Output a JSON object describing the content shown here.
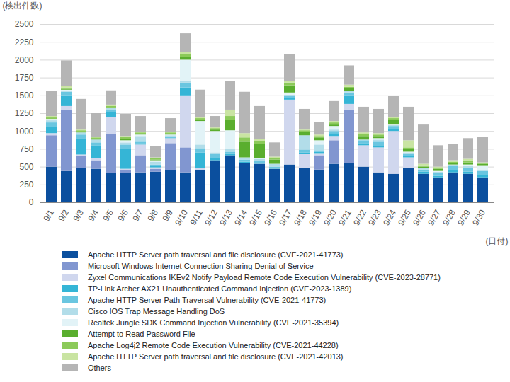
{
  "chart_data": {
    "type": "bar",
    "stacked": true,
    "grid": true,
    "legend": "bottom",
    "ylabel": "(検出件数)",
    "xlabel": "(日付)",
    "ylim": [
      0,
      2500
    ],
    "yticks": [
      0,
      250,
      500,
      750,
      1000,
      1250,
      1500,
      1750,
      2000,
      2250,
      2500
    ],
    "categories": [
      "9/1",
      "9/2",
      "9/3",
      "9/4",
      "9/5",
      "9/6",
      "9/7",
      "9/8",
      "9/9",
      "9/10",
      "9/11",
      "9/12",
      "9/13",
      "9/14",
      "9/15",
      "9/16",
      "9/17",
      "9/18",
      "9/19",
      "9/20",
      "9/21",
      "9/22",
      "9/23",
      "9/24",
      "9/25",
      "9/26",
      "9/27",
      "9/28",
      "9/29",
      "9/30"
    ],
    "series": [
      {
        "name": "Apache HTTP Server path traversal and file disclosure (CVE-2021-41773)",
        "color": "#0b4f9e",
        "values": [
          500,
          440,
          480,
          470,
          410,
          410,
          420,
          430,
          450,
          420,
          450,
          590,
          660,
          550,
          540,
          470,
          530,
          480,
          460,
          540,
          550,
          500,
          420,
          400,
          480,
          400,
          350,
          420,
          400,
          350
        ]
      },
      {
        "name": "Microsoft Windows Internet Connection Sharing Denial of Service",
        "color": "#8196d0",
        "values": [
          440,
          860,
          170,
          120,
          550,
          40,
          240,
          40,
          380,
          350,
          10,
          0,
          0,
          0,
          0,
          0,
          0,
          0,
          200,
          330,
          750,
          0,
          0,
          0,
          0,
          0,
          0,
          0,
          0,
          0
        ]
      },
      {
        "name": "Zyxel Communications IKEv2 Notify Payload Remote Code Execution Vulnerability (CVE-2023-28771)",
        "color": "#d0d7ee",
        "values": [
          30,
          50,
          20,
          30,
          240,
          20,
          150,
          20,
          70,
          730,
          20,
          0,
          0,
          0,
          0,
          0,
          910,
          200,
          30,
          60,
          80,
          300,
          350,
          600,
          150,
          0,
          0,
          0,
          0,
          0
        ]
      },
      {
        "name": "TP-Link Archer AX21 Unauthenticated Command Injection (CVE-2023-1389)",
        "color": "#35b5d6",
        "values": [
          90,
          150,
          230,
          180,
          60,
          280,
          20,
          20,
          10,
          110,
          220,
          30,
          30,
          20,
          0,
          0,
          20,
          20,
          20,
          40,
          120,
          30,
          20,
          30,
          20,
          30,
          20,
          30,
          30,
          30
        ]
      },
      {
        "name": "Apache HTTP Server Path Traversal Vulnerability (CVE-2021-41773)",
        "color": "#6ac6e0",
        "values": [
          60,
          50,
          50,
          40,
          40,
          60,
          20,
          20,
          10,
          70,
          60,
          60,
          20,
          30,
          40,
          30,
          30,
          40,
          20,
          30,
          40,
          40,
          60,
          40,
          30,
          30,
          40,
          60,
          60,
          60
        ]
      },
      {
        "name": "Cisco IOS Trap Message Handling DoS",
        "color": "#b2dde9",
        "values": [
          30,
          20,
          30,
          40,
          20,
          30,
          80,
          40,
          20,
          30,
          50,
          20,
          40,
          30,
          30,
          40,
          20,
          200,
          80,
          20,
          20,
          10,
          30,
          20,
          20,
          20,
          20,
          20,
          20,
          20
        ]
      },
      {
        "name": "Realtek Jungle SDK Command Injection Vulnerability (CVE-2021-35394)",
        "color": "#e2f3f7",
        "values": [
          20,
          10,
          0,
          0,
          0,
          30,
          20,
          20,
          10,
          290,
          330,
          300,
          260,
          0,
          10,
          0,
          30,
          0,
          60,
          50,
          0,
          0,
          20,
          10,
          10,
          0,
          10,
          0,
          20,
          60
        ]
      },
      {
        "name": "Attempt to Read Password File",
        "color": "#5aae2e",
        "values": [
          0,
          10,
          10,
          10,
          10,
          20,
          10,
          10,
          10,
          40,
          20,
          20,
          150,
          220,
          200,
          60,
          100,
          50,
          40,
          30,
          40,
          50,
          30,
          60,
          40,
          20,
          30,
          20,
          30,
          20
        ]
      },
      {
        "name": "Apache Log4j2 Remote Code Execution Vulnerability (CVE-2021-44228)",
        "color": "#8cca5a",
        "values": [
          20,
          20,
          20,
          20,
          20,
          30,
          20,
          20,
          20,
          40,
          20,
          20,
          50,
          60,
          40,
          20,
          40,
          20,
          20,
          20,
          20,
          30,
          20,
          20,
          20,
          20,
          20,
          20,
          30,
          10
        ]
      },
      {
        "name": "Apache HTTP Server path traversal and file disclosure (CVE-2021-42013)",
        "color": "#c9e4a2",
        "values": [
          20,
          20,
          10,
          10,
          20,
          10,
          10,
          10,
          10,
          30,
          10,
          10,
          90,
          60,
          30,
          20,
          20,
          10,
          20,
          20,
          30,
          20,
          20,
          20,
          100,
          20,
          10,
          20,
          20,
          10
        ]
      },
      {
        "name": "Others",
        "color": "#b5b5b5",
        "values": [
          350,
          360,
          430,
          330,
          200,
          310,
          220,
          160,
          190,
          260,
          390,
          160,
          400,
          580,
          460,
          200,
          380,
          290,
          180,
          280,
          270,
          360,
          340,
          290,
          470,
          560,
          300,
          230,
          290,
          360
        ]
      }
    ]
  }
}
